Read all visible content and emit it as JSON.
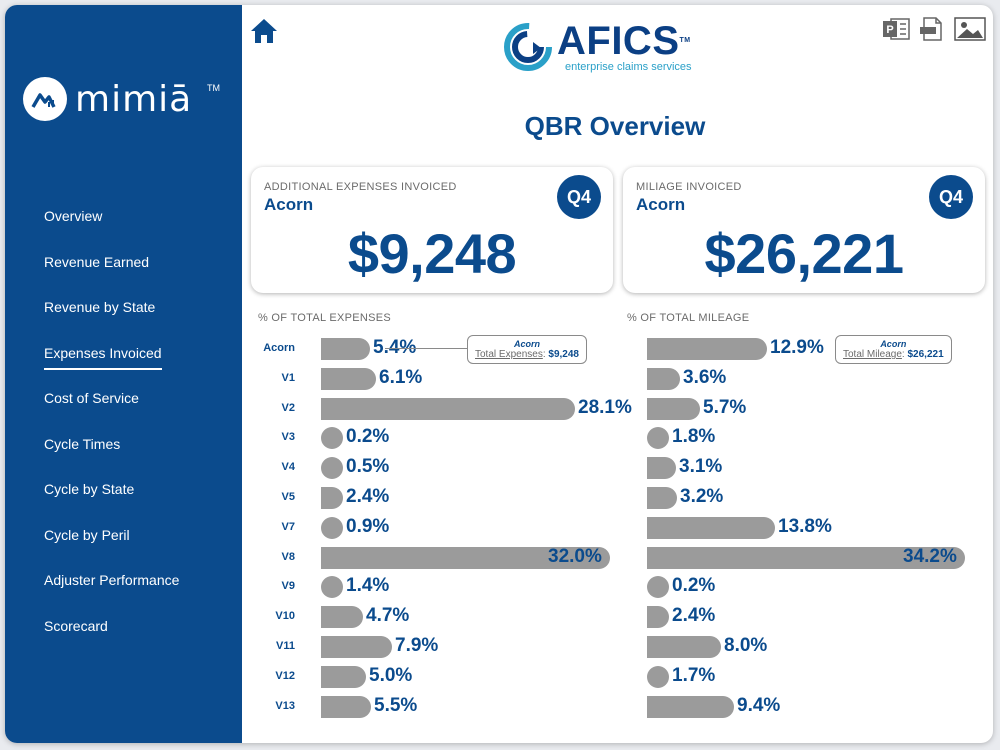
{
  "brand": {
    "name": "mimiā",
    "tm": "TM"
  },
  "logo": {
    "name": "AFICS",
    "tagline": "enterprise claims services",
    "tm": "TM"
  },
  "nav": [
    "Overview",
    "Revenue Earned",
    "Revenue by State",
    "Expenses Invoiced",
    "Cost of Service",
    "Cycle Times",
    "Cycle by State",
    "Cycle by Peril",
    "Adjuster Performance",
    "Scorecard"
  ],
  "active_nav": "Expenses Invoiced",
  "page_title": "QBR Overview",
  "card_left": {
    "label": "ADDITIONAL EXPENSES INVOICED",
    "client": "Acorn",
    "badge": "Q4",
    "value": "$9,248"
  },
  "card_right": {
    "label": "MILIAGE INVOICED",
    "client": "Acorn",
    "badge": "Q4",
    "value": "$26,221"
  },
  "tooltip_left": {
    "name": "Acorn",
    "label": "Total Expenses",
    "value": "$9,248"
  },
  "tooltip_right": {
    "name": "Acorn",
    "label": "Total Mileage",
    "value": "$26,221"
  },
  "colors": {
    "primary": "#0b4b8d",
    "bar": "#9b9b9b",
    "accent": "#2aa0c8"
  },
  "chart_data": [
    {
      "type": "bar",
      "title": "% OF TOTAL EXPENSES",
      "orientation": "horizontal",
      "categories": [
        "Acorn",
        "V1",
        "V2",
        "V3",
        "V4",
        "V5",
        "V7",
        "V8",
        "V9",
        "V10",
        "V11",
        "V12",
        "V13"
      ],
      "values": [
        5.4,
        6.1,
        28.1,
        0.2,
        0.5,
        2.4,
        0.9,
        32.0,
        1.4,
        4.7,
        7.9,
        5.0,
        5.5
      ],
      "unit": "%",
      "xlim": [
        0,
        32.0
      ]
    },
    {
      "type": "bar",
      "title": "% OF TOTAL MILEAGE",
      "orientation": "horizontal",
      "categories": [
        "Acorn",
        "V1",
        "V2",
        "V3",
        "V4",
        "V5",
        "V7",
        "V8",
        "V9",
        "V10",
        "V11",
        "V12",
        "V13"
      ],
      "values": [
        12.9,
        3.6,
        5.7,
        1.8,
        3.1,
        3.2,
        13.8,
        34.2,
        0.2,
        2.4,
        8.0,
        1.7,
        9.4
      ],
      "unit": "%",
      "xlim": [
        0,
        34.2
      ]
    }
  ]
}
